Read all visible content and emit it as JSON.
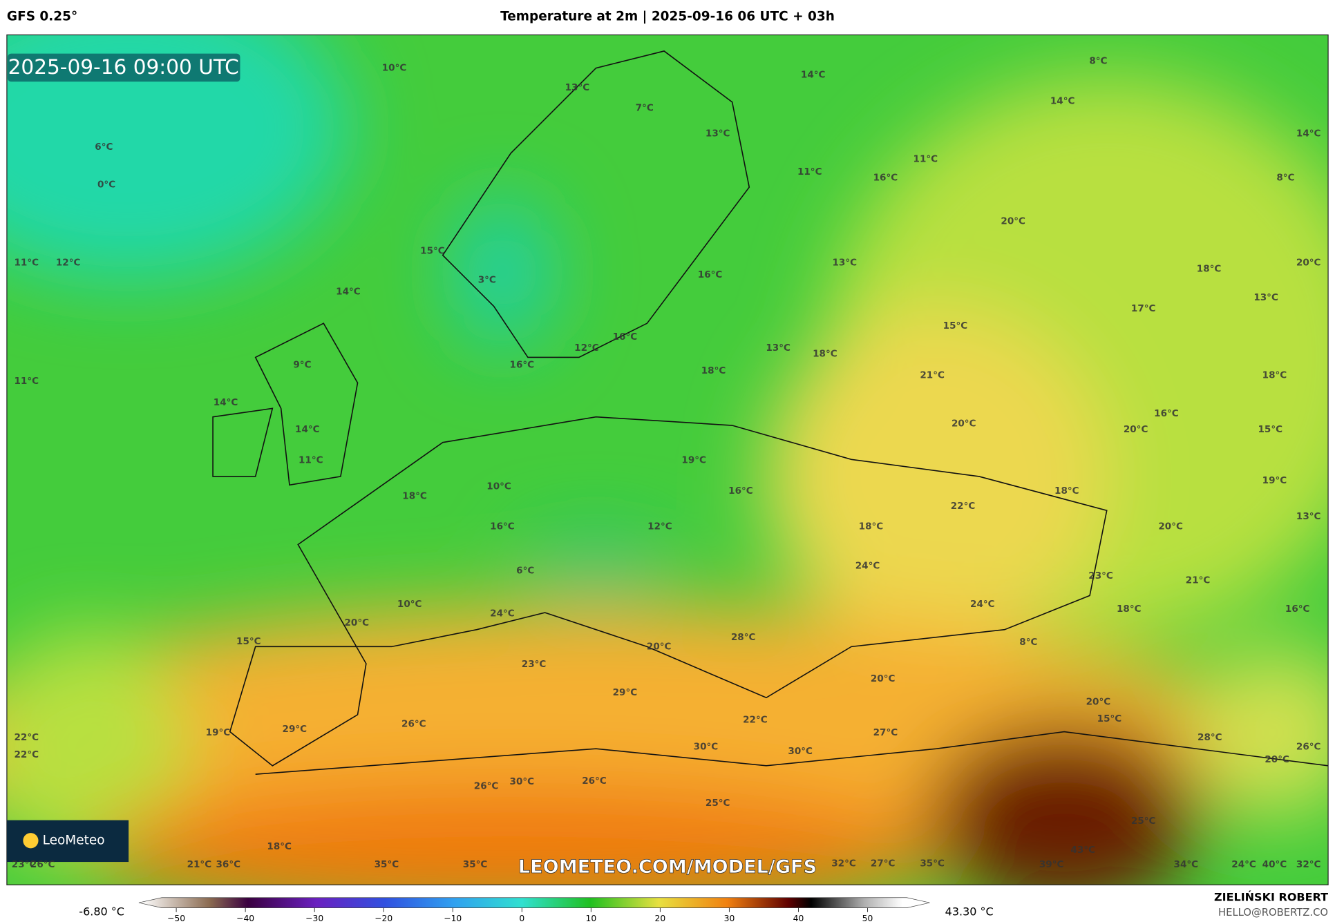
{
  "header": {
    "model": "GFS 0.25°",
    "title": "Temperature at 2m | 2025-09-16 06 UTC + 03h"
  },
  "map": {
    "timestamp": "2025-09-16 09:00 UTC",
    "watermark": "LEOMETEO.COM/MODEL/GFS",
    "logo": "LeoMeteo",
    "labels": [
      "10°C",
      "13°C",
      "7°C",
      "14°C",
      "8°C",
      "14°C",
      "14°C",
      "6°C",
      "0°C",
      "13°C",
      "11°C",
      "11°C",
      "16°C",
      "8°C",
      "20°C",
      "11°C",
      "12°C",
      "15°C",
      "3°C",
      "16°C",
      "13°C",
      "18°C",
      "20°C",
      "14°C",
      "13°C",
      "17°C",
      "15°C",
      "12°C",
      "16°C",
      "13°C",
      "18°C",
      "9°C",
      "16°C",
      "18°C",
      "21°C",
      "18°C",
      "11°C",
      "14°C",
      "16°C",
      "14°C",
      "20°C",
      "20°C",
      "15°C",
      "11°C",
      "19°C",
      "10°C",
      "18°C",
      "16°C",
      "22°C",
      "18°C",
      "19°C",
      "16°C",
      "12°C",
      "18°C",
      "20°C",
      "13°C",
      "6°C",
      "24°C",
      "23°C",
      "21°C",
      "10°C",
      "24°C",
      "24°C",
      "18°C",
      "16°C",
      "20°C",
      "28°C",
      "8°C",
      "15°C",
      "20°C",
      "23°C",
      "20°C",
      "29°C",
      "20°C",
      "15°C",
      "29°C",
      "26°C",
      "22°C",
      "27°C",
      "28°C",
      "22°C",
      "22°C",
      "19°C",
      "30°C",
      "30°C",
      "26°C",
      "20°C",
      "30°C",
      "26°C",
      "26°C",
      "25°C",
      "25°C",
      "43°C",
      "18°C",
      "21°C",
      "36°C",
      "35°C",
      "35°C",
      "32°C",
      "27°C",
      "35°C",
      "39°C",
      "34°C",
      "24°C",
      "40°C",
      "32°C",
      "23°C",
      "26°C"
    ]
  },
  "colorbar": {
    "min_label": "-6.80 °C",
    "max_label": "43.30 °C",
    "ticks": [
      {
        "value": -50,
        "label": "−50"
      },
      {
        "value": -40,
        "label": "−40"
      },
      {
        "value": -30,
        "label": "−30"
      },
      {
        "value": -20,
        "label": "−20"
      },
      {
        "value": -10,
        "label": "−10"
      },
      0,
      10,
      20,
      30,
      40,
      50
    ]
  },
  "footer": {
    "author": "ZIELIŃSKI ROBERT",
    "email": "HELLO@ROBERTZ.CO"
  }
}
